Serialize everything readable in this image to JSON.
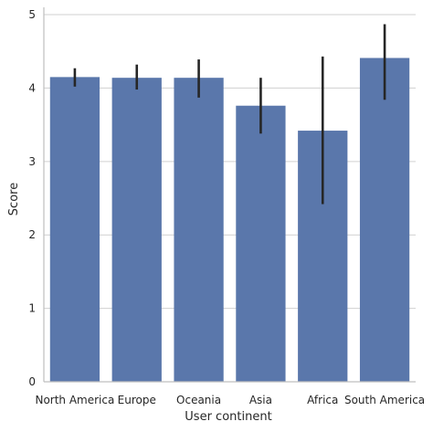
{
  "chart_data": {
    "type": "bar",
    "xlabel": "User continent",
    "ylabel": "Score",
    "categories": [
      "North America",
      "Europe",
      "Oceania",
      "Asia",
      "Africa",
      "South America"
    ],
    "values": [
      4.15,
      4.14,
      4.14,
      3.76,
      3.42,
      4.41
    ],
    "error_low": [
      4.02,
      3.98,
      3.87,
      3.38,
      2.42,
      3.84
    ],
    "error_high": [
      4.27,
      4.32,
      4.39,
      4.14,
      4.43,
      4.87
    ],
    "ylim": [
      0,
      5.1
    ],
    "yticks": [
      0,
      1,
      2,
      3,
      4,
      5
    ],
    "grid": "horizontal",
    "bar_color": "#5a77ab",
    "errorbar_color": "#262626",
    "grid_color": "#d0d0d0"
  }
}
